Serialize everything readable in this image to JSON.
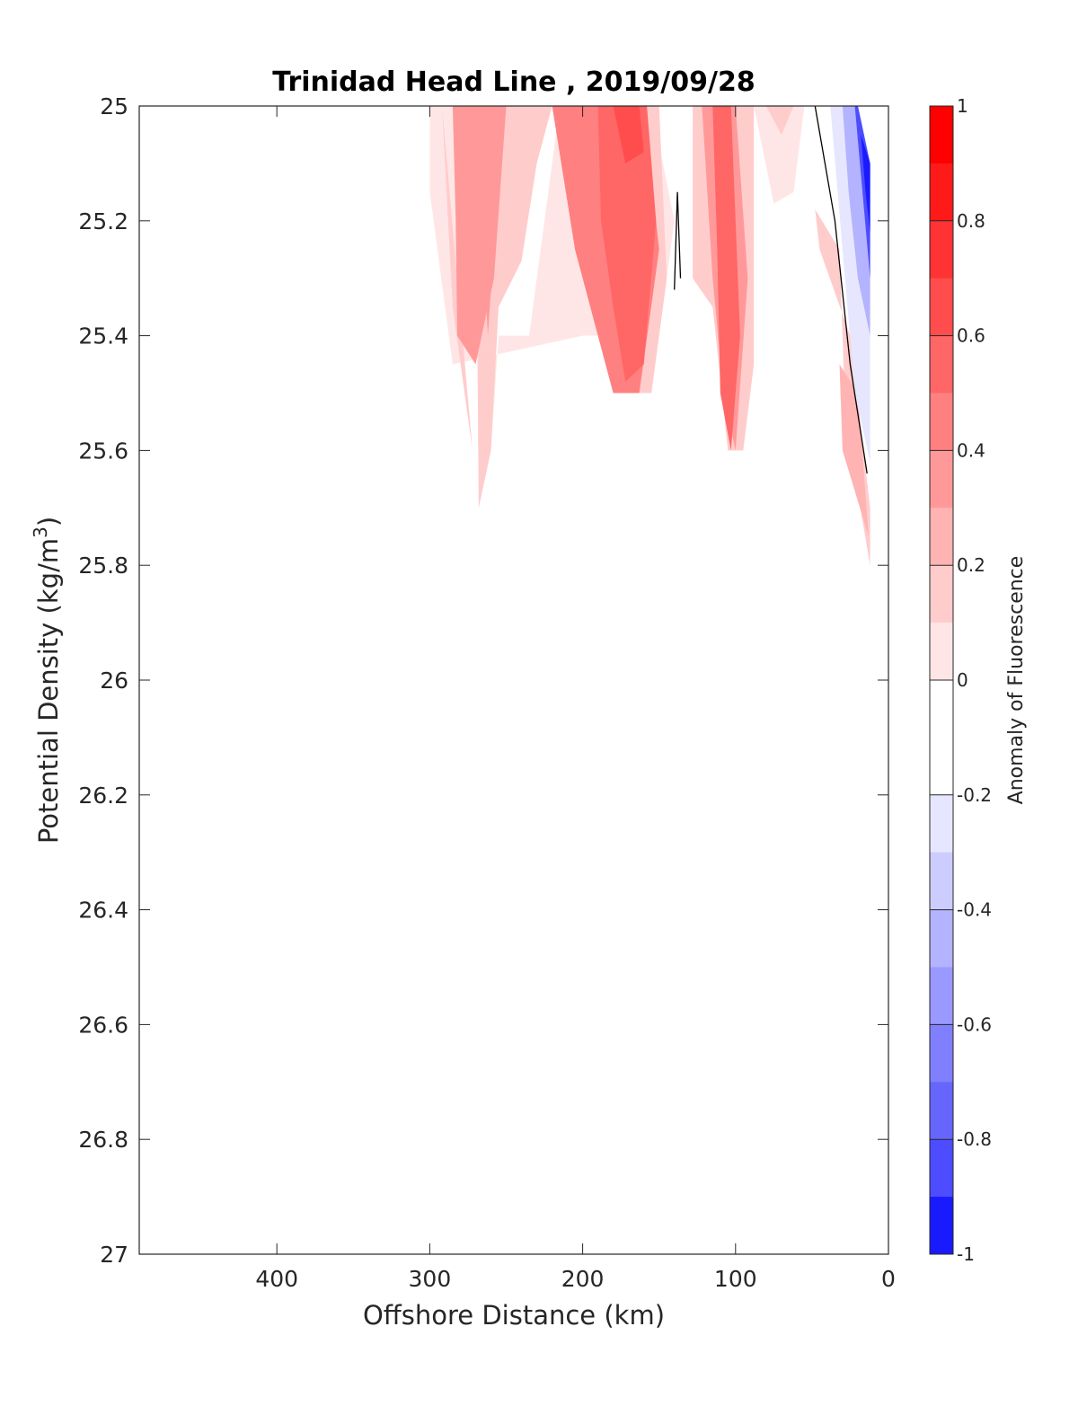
{
  "chart_data": {
    "type": "contourf",
    "title": "Trinidad Head Line , 2019/09/28",
    "xlabel": "Offshore Distance (km)",
    "ylabel_main": "Potential Density (kg/m",
    "ylabel_sup": "3",
    "ylabel_close": ")",
    "xlim": [
      490,
      0
    ],
    "x_reversed": true,
    "ylim": [
      25,
      27
    ],
    "y_reversed": true,
    "x_ticks": [
      400,
      300,
      200,
      100,
      0
    ],
    "x_tick_labels": [
      "400",
      "300",
      "200",
      "100",
      "0"
    ],
    "y_ticks": [
      25,
      25.2,
      25.4,
      25.6,
      25.8,
      26,
      26.2,
      26.4,
      26.6,
      26.8,
      27
    ],
    "y_tick_labels": [
      "25",
      "25.2",
      "25.4",
      "25.6",
      "25.8",
      "26",
      "26.2",
      "26.4",
      "26.6",
      "26.8",
      "27"
    ],
    "colorbar": {
      "label": "Anomaly of Fluorescence",
      "range": [
        -1,
        1
      ],
      "ticks": [
        1,
        0.8,
        0.6,
        0.4,
        0.2,
        0,
        -0.2,
        -0.4,
        -0.6,
        -0.8,
        -1
      ],
      "tick_labels": [
        "1",
        "0.8",
        "0.6",
        "0.4",
        "0.2",
        "0",
        "-0.2",
        "-0.4",
        "-0.6",
        "-0.8",
        "-1"
      ],
      "levels": [
        {
          "from": 0.9,
          "to": 1.0,
          "color": "#ff0000"
        },
        {
          "from": 0.8,
          "to": 0.9,
          "color": "#ff1a1a"
        },
        {
          "from": 0.7,
          "to": 0.8,
          "color": "#ff3333"
        },
        {
          "from": 0.6,
          "to": 0.7,
          "color": "#ff4d4d"
        },
        {
          "from": 0.5,
          "to": 0.6,
          "color": "#ff6666"
        },
        {
          "from": 0.4,
          "to": 0.5,
          "color": "#ff8080"
        },
        {
          "from": 0.3,
          "to": 0.4,
          "color": "#ff9999"
        },
        {
          "from": 0.2,
          "to": 0.3,
          "color": "#ffb3b3"
        },
        {
          "from": 0.1,
          "to": 0.2,
          "color": "#ffcccc"
        },
        {
          "from": 0.0,
          "to": 0.1,
          "color": "#ffe6e6"
        },
        {
          "from": -0.1,
          "to": 0.0,
          "color": "#ffffff"
        },
        {
          "from": -0.2,
          "to": -0.1,
          "color": "#ffffff"
        },
        {
          "from": -0.3,
          "to": -0.2,
          "color": "#e6e6ff"
        },
        {
          "from": -0.4,
          "to": -0.3,
          "color": "#ccccff"
        },
        {
          "from": -0.5,
          "to": -0.4,
          "color": "#b3b3ff"
        },
        {
          "from": -0.6,
          "to": -0.5,
          "color": "#9999ff"
        },
        {
          "from": -0.7,
          "to": -0.6,
          "color": "#8080ff"
        },
        {
          "from": -0.8,
          "to": -0.7,
          "color": "#6666ff"
        },
        {
          "from": -0.9,
          "to": -0.8,
          "color": "#4d4dff"
        },
        {
          "from": -1.0,
          "to": -0.9,
          "color": "#1a1aff"
        }
      ]
    },
    "regions": [
      {
        "name": "west-pale-band",
        "value": 0.1,
        "color": "#ffe6e6",
        "points": [
          [
            300,
            25.0
          ],
          [
            270,
            25.0
          ],
          [
            268,
            25.7
          ],
          [
            260,
            25.6
          ],
          [
            255,
            25.4
          ],
          [
            235,
            25.4
          ],
          [
            215,
            25.0
          ],
          [
            155,
            25.0
          ],
          [
            140,
            25.2
          ],
          [
            150,
            25.4
          ],
          [
            200,
            25.4
          ],
          [
            285,
            25.45
          ],
          [
            300,
            25.15
          ]
        ]
      },
      {
        "name": "west-light-band",
        "value": 0.2,
        "color": "#ffcccc",
        "points": [
          [
            292,
            25.0
          ],
          [
            270,
            25.0
          ],
          [
            268,
            25.7
          ],
          [
            260,
            25.6
          ],
          [
            255,
            25.35
          ],
          [
            240,
            25.27
          ],
          [
            230,
            25.1
          ],
          [
            220,
            25.0
          ],
          [
            205,
            25.0
          ],
          [
            175,
            25.5
          ],
          [
            155,
            25.5
          ],
          [
            145,
            25.3
          ],
          [
            150,
            25.0
          ],
          [
            292,
            25.0
          ],
          [
            285,
            25.35
          ],
          [
            272,
            25.6
          ]
        ]
      },
      {
        "name": "west-core-a",
        "value": 0.4,
        "color": "#ff9999",
        "points": [
          [
            285,
            25.0
          ],
          [
            250,
            25.0
          ],
          [
            258,
            25.3
          ],
          [
            270,
            25.45
          ],
          [
            282,
            25.4
          ],
          [
            283,
            25.2
          ]
        ]
      },
      {
        "name": "west-core-b",
        "value": 0.4,
        "color": "#ff9999",
        "points": [
          [
            275,
            25.0
          ],
          [
            252,
            25.0
          ],
          [
            262,
            25.4
          ],
          [
            265,
            25.25
          ]
        ]
      },
      {
        "name": "central-core",
        "value": 0.5,
        "color": "#ff8080",
        "points": [
          [
            220,
            25.0
          ],
          [
            160,
            25.0
          ],
          [
            150,
            25.25
          ],
          [
            163,
            25.5
          ],
          [
            180,
            25.5
          ],
          [
            190,
            25.4
          ],
          [
            205,
            25.25
          ]
        ]
      },
      {
        "name": "central-strong",
        "value": 0.6,
        "color": "#ff6666",
        "points": [
          [
            190,
            25.0
          ],
          [
            158,
            25.0
          ],
          [
            152,
            25.2
          ],
          [
            160,
            25.45
          ],
          [
            172,
            25.48
          ],
          [
            180,
            25.35
          ],
          [
            188,
            25.2
          ]
        ]
      },
      {
        "name": "central-peak",
        "value": 0.7,
        "color": "#ff4d4d",
        "points": [
          [
            180,
            25.0
          ],
          [
            163,
            25.0
          ],
          [
            160,
            25.08
          ],
          [
            172,
            25.1
          ]
        ]
      },
      {
        "name": "east-band-light",
        "value": 0.2,
        "color": "#ffcccc",
        "points": [
          [
            128,
            25.0
          ],
          [
            88,
            25.0
          ],
          [
            88,
            25.45
          ],
          [
            95,
            25.6
          ],
          [
            105,
            25.6
          ],
          [
            115,
            25.35
          ],
          [
            128,
            25.3
          ]
        ]
      },
      {
        "name": "east-band-mid",
        "value": 0.4,
        "color": "#ff9999",
        "points": [
          [
            122,
            25.0
          ],
          [
            100,
            25.0
          ],
          [
            92,
            25.3
          ],
          [
            100,
            25.6
          ],
          [
            108,
            25.5
          ],
          [
            115,
            25.3
          ]
        ]
      },
      {
        "name": "east-band-core",
        "value": 0.6,
        "color": "#ff6666",
        "points": [
          [
            115,
            25.0
          ],
          [
            103,
            25.0
          ],
          [
            97,
            25.4
          ],
          [
            103,
            25.6
          ],
          [
            110,
            25.5
          ],
          [
            112,
            25.25
          ]
        ]
      },
      {
        "name": "nearshore-pale-top",
        "value": 0.1,
        "color": "#ffe6e6",
        "points": [
          [
            88,
            25.0
          ],
          [
            55,
            25.0
          ],
          [
            62,
            25.15
          ],
          [
            75,
            25.17
          ]
        ]
      },
      {
        "name": "nearshore-light-top",
        "value": 0.2,
        "color": "#ffcccc",
        "points": [
          [
            80,
            25.0
          ],
          [
            62,
            25.0
          ],
          [
            70,
            25.05
          ]
        ]
      },
      {
        "name": "coastal-diagonal",
        "value": 0.2,
        "color": "#ffcccc",
        "points": [
          [
            48,
            25.18
          ],
          [
            32,
            25.25
          ],
          [
            28,
            25.55
          ],
          [
            12,
            25.8
          ],
          [
            12,
            25.7
          ],
          [
            25,
            25.4
          ],
          [
            45,
            25.25
          ]
        ]
      },
      {
        "name": "coastal-diagonal-mid",
        "value": 0.3,
        "color": "#ffb3b3",
        "points": [
          [
            30,
            25.6
          ],
          [
            13,
            25.75
          ],
          [
            20,
            25.5
          ],
          [
            32,
            25.45
          ]
        ]
      },
      {
        "name": "coastal-negative-weak",
        "value": -0.3,
        "color": "#e6e6ff",
        "points": [
          [
            38,
            25.0
          ],
          [
            20,
            25.0
          ],
          [
            12,
            25.1
          ],
          [
            12,
            25.62
          ],
          [
            22,
            25.5
          ],
          [
            30,
            25.25
          ]
        ]
      },
      {
        "name": "coastal-negative-mid",
        "value": -0.5,
        "color": "#b3b3ff",
        "points": [
          [
            30,
            25.0
          ],
          [
            20,
            25.0
          ],
          [
            12,
            25.1
          ],
          [
            12,
            25.4
          ],
          [
            20,
            25.3
          ],
          [
            26,
            25.15
          ]
        ]
      },
      {
        "name": "coastal-negative-strong",
        "value": -0.8,
        "color": "#4d4dff",
        "points": [
          [
            22,
            25.0
          ],
          [
            20,
            25.0
          ],
          [
            12,
            25.1
          ],
          [
            12,
            25.3
          ],
          [
            17,
            25.15
          ]
        ]
      },
      {
        "name": "coastal-negative-core",
        "value": -0.9,
        "color": "#1a1aff",
        "points": [
          [
            18,
            25.05
          ],
          [
            12,
            25.1
          ],
          [
            12,
            25.22
          ],
          [
            15,
            25.15
          ]
        ]
      }
    ],
    "contour_lines": [
      {
        "name": "zero-contour-coast",
        "points": [
          [
            48,
            25.0
          ],
          [
            35,
            25.2
          ],
          [
            25,
            25.45
          ],
          [
            14,
            25.64
          ]
        ]
      },
      {
        "name": "zero-contour-small",
        "points": [
          [
            140,
            25.32
          ],
          [
            138,
            25.15
          ],
          [
            136,
            25.3
          ]
        ]
      }
    ]
  }
}
